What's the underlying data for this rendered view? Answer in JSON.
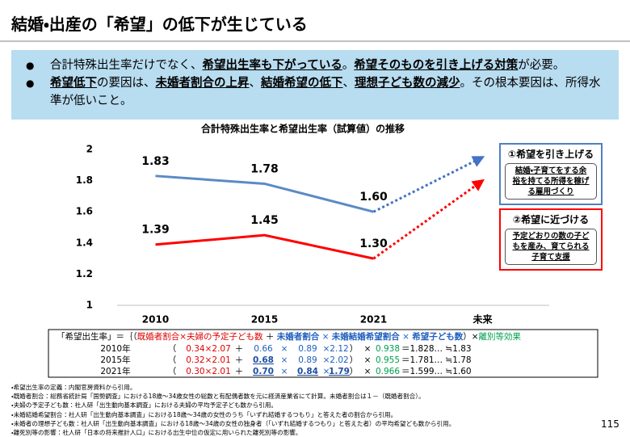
{
  "header": {
    "title": "結婚・出産の「希望」の低下が生じている"
  },
  "bullets": [
    [
      "合計特殊出生率だけでなく、",
      "希望出生率も下がっている",
      "。",
      "希望そのものを引き上げる対策",
      "が必要。"
    ],
    [
      "希望低下",
      "の要因は、",
      "未婚者割合の上昇",
      "、",
      "結婚希望の低下",
      "、",
      "理想子ども数の減少",
      "。その根本要因は、所得水準が低いこと。"
    ]
  ],
  "chart_data": {
    "type": "line",
    "title": "合計特殊出生率と希望出生率（試算値）の推移",
    "categories": [
      "2010",
      "2015",
      "2021",
      "未来"
    ],
    "series": [
      {
        "color": "#5b8ac6",
        "values": [
          1.83,
          1.78,
          1.6,
          1.95
        ],
        "value_labels": [
          "1.83",
          "1.78",
          "1.60",
          null
        ]
      },
      {
        "color": "#ff0000",
        "values": [
          1.39,
          1.45,
          1.3,
          1.8
        ],
        "value_labels": [
          "1.39",
          "1.45",
          "1.30",
          null
        ]
      }
    ],
    "dashed_from": 2,
    "ylim": [
      1,
      2
    ],
    "yticks": [
      1,
      1.2,
      1.4,
      1.6,
      1.8,
      2
    ],
    "grid": false,
    "annotations": [
      {
        "title": "①希望を引き上げる",
        "text": "結婚・子育てをする余裕を持てる所得を稼げる雇用づくり"
      },
      {
        "title": "②希望に近づける",
        "text": "予定どおりの数の子どもを産み、育てられる子育て支援"
      }
    ]
  },
  "formula": {
    "header": [
      "「希望出生率」＝｛（",
      "既婚者割合×夫婦の予定子ども数",
      " ＋ ",
      "未婚者割合",
      " × ",
      "未婚結婚希望割合",
      " × ",
      "希望子ども数",
      "）×",
      "離別等効果"
    ],
    "rows": [
      [
        "2010年",
        "（",
        "0.34×2.07",
        "＋",
        "0.66",
        "×",
        "0.89",
        "×",
        "2.12",
        "）",
        "×",
        "0.938",
        "＝1.828… ≒1.83"
      ],
      [
        "2015年",
        "（",
        "0.32×2.01",
        "＋",
        "0.68",
        "×",
        "0.89",
        "×",
        "2.02",
        "）",
        "×",
        "0.955",
        "＝1.781… ≒1.78"
      ],
      [
        "2021年",
        "（",
        "0.30×2.01",
        "＋",
        "0.70",
        "×",
        "0.84",
        "×",
        "1.79",
        "）",
        "×",
        "0.966",
        "＝1.599… ≒1.60"
      ]
    ]
  },
  "notes": [
    "・希望出生率の定義：内閣官房資料から引用。",
    "・既婚者割合：総務省統計局「国勢調査」における18歳～34歳女性の総数と有配偶者数を元に経済産業省にて計算。未婚者割合は１－（既婚者割合）。",
    "・夫婦の予定子ども数：社人研「出生動向基本調査」における夫婦の平均予定子ども数から引用。",
    "・未婚結婚希望割合：社人研「出生動向基本調査」における18歳～34歳の女性のうち「いずれ結婚するつもり」と答えた者の割合から引用。",
    "・未婚者の理想子ども数：社人研「出生動向基本調査」における18歳～34歳の女性の独身者（「いずれ結婚するつもり」と答えた者）の平均希望ども数から引用。",
    "・離死別等の影響：社人研「日本の将来推計人口」における出生中位の仮定に用いられた離死別等の影響。"
  ],
  "page_number": "115"
}
